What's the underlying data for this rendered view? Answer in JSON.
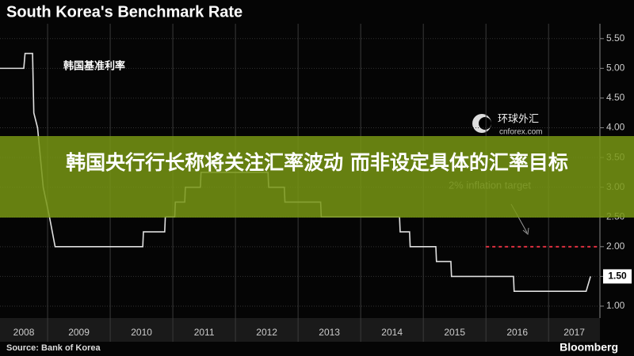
{
  "chart_data": {
    "type": "line",
    "title": "South Korea's Benchmark Rate",
    "source": "Source: Bank of Korea",
    "brand": "Bloomberg",
    "series": [
      {
        "name": "韩国基准利率",
        "color": "#e0e0e0",
        "x": [
          2008.24,
          2008.62,
          2008.64,
          2008.76,
          2008.78,
          2008.84,
          2008.93,
          2009.03,
          2009.12,
          2010.52,
          2010.53,
          2010.87,
          2010.88,
          2011.03,
          2011.04,
          2011.19,
          2011.2,
          2011.44,
          2011.45,
          2012.52,
          2012.53,
          2012.78,
          2012.79,
          2013.36,
          2013.37,
          2014.62,
          2014.63,
          2014.78,
          2014.79,
          2015.2,
          2015.21,
          2015.44,
          2015.45,
          2016.44,
          2016.45,
          2017.6,
          2017.67
        ],
        "values": [
          5.0,
          5.0,
          5.25,
          5.25,
          4.25,
          4.0,
          3.0,
          2.5,
          2.0,
          2.0,
          2.25,
          2.25,
          2.5,
          2.5,
          2.75,
          2.75,
          3.0,
          3.0,
          3.25,
          3.25,
          3.0,
          3.0,
          2.75,
          2.75,
          2.5,
          2.5,
          2.25,
          2.25,
          2.0,
          2.0,
          1.75,
          1.75,
          1.5,
          1.5,
          1.25,
          1.25,
          1.5
        ]
      }
    ],
    "last_label": {
      "value": 1.5,
      "label": "1.50"
    },
    "target": {
      "label": "2% inflation target",
      "value": 2.0,
      "x_from": 2016.0,
      "color": "#e03040"
    },
    "xlim": [
      2008.24,
      2017.82
    ],
    "xticks": [
      2009,
      2010,
      2011,
      2012,
      2013,
      2014,
      2015,
      2016,
      2017
    ],
    "x_labels": [
      "2008",
      "2009",
      "2010",
      "2011",
      "2012",
      "2013",
      "2014",
      "2015",
      "2016",
      "2017"
    ],
    "ylim": [
      0.8,
      5.75
    ],
    "yticks": [
      {
        "value": 1.0,
        "label": "1.00"
      },
      {
        "value": 1.5,
        "label": "1.50"
      },
      {
        "value": 2.0,
        "label": "2.00"
      },
      {
        "value": 2.5,
        "label": "2.50"
      },
      {
        "value": 3.0,
        "label": "3.00"
      },
      {
        "value": 3.5,
        "label": "3.50"
      },
      {
        "value": 4.0,
        "label": "4.00"
      },
      {
        "value": 4.5,
        "label": "4.50"
      },
      {
        "value": 5.0,
        "label": "5.00"
      },
      {
        "value": 5.5,
        "label": "5.50"
      }
    ],
    "grid": true
  },
  "watermark": {
    "name": "环球外汇",
    "site": "cnforex.com"
  },
  "banner": {
    "text": "韩国央行行长称将关注汇率波动 而非设定具体的汇率目标"
  }
}
